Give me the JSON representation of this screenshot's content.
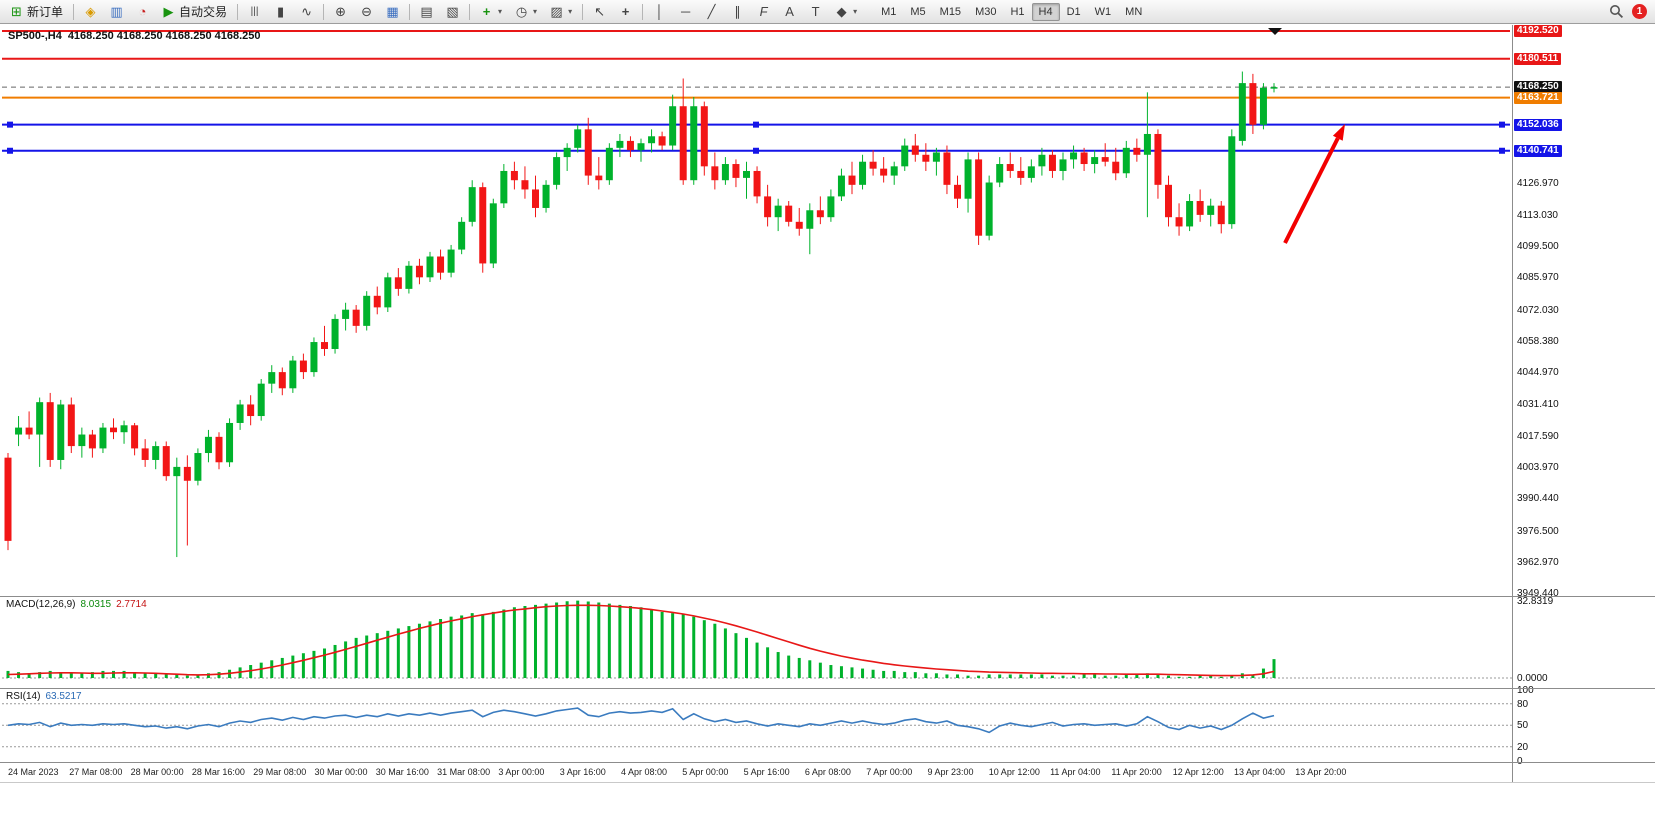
{
  "toolbar": {
    "new_order_label": "新订单",
    "auto_trading_label": "自动交易",
    "timeframes": [
      "M1",
      "M5",
      "M15",
      "M30",
      "H1",
      "H4",
      "D1",
      "W1",
      "MN"
    ],
    "active_timeframe": "H4",
    "notification_badge": "1",
    "icons": {
      "new_order": "⊞",
      "metaeditor": "◈",
      "market_watch": "▥",
      "strategy_tester": "◔",
      "auto_trading": "▶",
      "bar_chart": "|||",
      "candle_chart": "▮",
      "line_chart": "∿",
      "zoom_in": "⊕",
      "zoom_out": "⊖",
      "tile_windows": "▦",
      "arrange_windows": "▤",
      "cascade_windows": "▧",
      "indicators_add": "+",
      "periods": "◷",
      "templates": "▨",
      "cursor": "↖",
      "crosshair": "+",
      "vertical_line": "│",
      "horizontal_line": "─",
      "trend_line": "╱",
      "channel": "∥",
      "fibonacci": "F",
      "text": "A",
      "text_label": "T",
      "shapes": "◆",
      "dropdown": "▾"
    }
  },
  "chart": {
    "title_symbol": "SP500-,H4",
    "title_ohlc": "4168.250 4168.250 4168.250 4168.250",
    "current_price": "4168.250",
    "axis_price_labels": [
      "4126.970",
      "4113.030",
      "4099.500",
      "4085.970",
      "4072.030",
      "4058.380",
      "4044.970",
      "4031.410",
      "4017.590",
      "4003.970",
      "3990.440",
      "3976.500",
      "3962.970",
      "3949.440"
    ],
    "price_tags": [
      {
        "label": "4192.520",
        "price": 4192.52,
        "bg": "#e81717",
        "line": "#e81717",
        "style": "solid",
        "width": 2,
        "selected": false
      },
      {
        "label": "4180.511",
        "price": 4180.511,
        "bg": "#e81717",
        "line": "#e81717",
        "style": "solid",
        "width": 2,
        "selected": false
      },
      {
        "label": "4168.250",
        "price": 4168.25,
        "bg": "#111111",
        "line": "#666666",
        "style": "dashed",
        "width": 1,
        "selected": false
      },
      {
        "label": "4163.721",
        "price": 4163.721,
        "bg": "#f07d00",
        "line": "#f07d00",
        "style": "solid",
        "width": 2,
        "selected": false
      },
      {
        "label": "4152.036",
        "price": 4152.036,
        "bg": "#1414e8",
        "line": "#1414e8",
        "style": "solid",
        "width": 2,
        "selected": true
      },
      {
        "label": "4140.741",
        "price": 4140.741,
        "bg": "#1414e8",
        "line": "#1414e8",
        "style": "solid",
        "width": 2,
        "selected": true
      }
    ]
  },
  "macd": {
    "name": "MACD(12,26,9)",
    "value_main": "8.0315",
    "value_signal": "2.7714",
    "axis": [
      "32.8319",
      "0.0000"
    ]
  },
  "rsi": {
    "name": "RSI(14)",
    "value": "63.5217",
    "axis": [
      "100",
      "80",
      "50",
      "20",
      "0"
    ],
    "levels": [
      80,
      50,
      20
    ]
  },
  "time_axis": [
    "24 Mar 2023",
    "27 Mar 08:00",
    "28 Mar 00:00",
    "28 Mar 16:00",
    "29 Mar 08:00",
    "30 Mar 00:00",
    "30 Mar 16:00",
    "31 Mar 08:00",
    "3 Apr 00:00",
    "3 Apr 16:00",
    "4 Apr 08:00",
    "5 Apr 00:00",
    "5 Apr 16:00",
    "6 Apr 08:00",
    "7 Apr 00:00",
    "9 Apr 23:00",
    "10 Apr 12:00",
    "11 Apr 04:00",
    "11 Apr 20:00",
    "12 Apr 12:00",
    "13 Apr 04:00",
    "13 Apr 20:00"
  ],
  "chart_data": {
    "type": "candlestick",
    "symbol": "SP500-",
    "timeframe": "H4",
    "title": "SP500-,H4 4168.250 4168.250 4168.250 4168.250",
    "price_axis_range": [
      3949.44,
      4192.52
    ],
    "current_price": 4168.25,
    "horizontal_levels": [
      {
        "price": 4192.52,
        "color": "red"
      },
      {
        "price": 4180.511,
        "color": "red"
      },
      {
        "price": 4163.721,
        "color": "orange"
      },
      {
        "price": 4152.036,
        "color": "blue"
      },
      {
        "price": 4140.741,
        "color": "blue"
      }
    ],
    "colors": {
      "up": "#00b22c",
      "down": "#f21616",
      "macd_hist": "#00b22c",
      "macd_signal": "#e81717",
      "rsi": "#3a7bbf",
      "annotation": "#f20000"
    },
    "candles": [
      [
        4008,
        4010,
        3968,
        3972
      ],
      [
        4018,
        4026,
        4013,
        4021
      ],
      [
        4021,
        4028,
        4016,
        4018
      ],
      [
        4018,
        4034,
        4004,
        4032
      ],
      [
        4032,
        4036,
        4004,
        4007
      ],
      [
        4007,
        4033,
        4003,
        4031
      ],
      [
        4031,
        4034,
        4010,
        4013
      ],
      [
        4013,
        4021,
        4008,
        4018
      ],
      [
        4018,
        4020,
        4008,
        4012
      ],
      [
        4012,
        4023,
        4010,
        4021
      ],
      [
        4021,
        4025,
        4016,
        4019
      ],
      [
        4019,
        4024,
        4014,
        4022
      ],
      [
        4022,
        4023,
        4009,
        4012
      ],
      [
        4012,
        4016,
        4004,
        4007
      ],
      [
        4007,
        4015,
        4003,
        4013
      ],
      [
        4013,
        4015,
        3998,
        4000
      ],
      [
        4000,
        4008,
        3965,
        4004
      ],
      [
        4004,
        4009,
        3970,
        3998
      ],
      [
        3998,
        4012,
        3996,
        4010
      ],
      [
        4010,
        4020,
        4006,
        4017
      ],
      [
        4017,
        4019,
        4003,
        4006
      ],
      [
        4006,
        4025,
        4004,
        4023
      ],
      [
        4023,
        4033,
        4020,
        4031
      ],
      [
        4031,
        4035,
        4022,
        4026
      ],
      [
        4026,
        4042,
        4024,
        4040
      ],
      [
        4040,
        4048,
        4036,
        4045
      ],
      [
        4045,
        4047,
        4035,
        4038
      ],
      [
        4038,
        4052,
        4036,
        4050
      ],
      [
        4050,
        4053,
        4042,
        4045
      ],
      [
        4045,
        4060,
        4043,
        4058
      ],
      [
        4058,
        4065,
        4052,
        4055
      ],
      [
        4055,
        4070,
        4053,
        4068
      ],
      [
        4068,
        4075,
        4063,
        4072
      ],
      [
        4072,
        4074,
        4062,
        4065
      ],
      [
        4065,
        4080,
        4063,
        4078
      ],
      [
        4078,
        4082,
        4070,
        4073
      ],
      [
        4073,
        4088,
        4071,
        4086
      ],
      [
        4086,
        4090,
        4078,
        4081
      ],
      [
        4081,
        4093,
        4079,
        4091
      ],
      [
        4091,
        4094,
        4083,
        4086
      ],
      [
        4086,
        4097,
        4084,
        4095
      ],
      [
        4095,
        4098,
        4085,
        4088
      ],
      [
        4088,
        4100,
        4086,
        4098
      ],
      [
        4098,
        4112,
        4096,
        4110
      ],
      [
        4110,
        4128,
        4108,
        4125
      ],
      [
        4125,
        4127,
        4088,
        4092
      ],
      [
        4092,
        4120,
        4090,
        4118
      ],
      [
        4118,
        4135,
        4116,
        4132
      ],
      [
        4132,
        4136,
        4124,
        4128
      ],
      [
        4128,
        4134,
        4120,
        4124
      ],
      [
        4124,
        4130,
        4112,
        4116
      ],
      [
        4116,
        4128,
        4114,
        4126
      ],
      [
        4126,
        4140,
        4124,
        4138
      ],
      [
        4138,
        4144,
        4132,
        4142
      ],
      [
        4142,
        4152,
        4140,
        4150
      ],
      [
        4150,
        4155,
        4126,
        4130
      ],
      [
        4130,
        4138,
        4124,
        4128
      ],
      [
        4128,
        4144,
        4126,
        4142
      ],
      [
        4142,
        4148,
        4138,
        4145
      ],
      [
        4145,
        4147,
        4138,
        4141
      ],
      [
        4141,
        4146,
        4136,
        4144
      ],
      [
        4144,
        4150,
        4140,
        4147
      ],
      [
        4147,
        4149,
        4141,
        4143
      ],
      [
        4143,
        4165,
        4141,
        4160
      ],
      [
        4160,
        4172,
        4126,
        4128
      ],
      [
        4128,
        4164,
        4126,
        4160
      ],
      [
        4160,
        4162,
        4130,
        4134
      ],
      [
        4134,
        4140,
        4124,
        4128
      ],
      [
        4128,
        4138,
        4126,
        4135
      ],
      [
        4135,
        4137,
        4125,
        4129
      ],
      [
        4129,
        4136,
        4120,
        4132
      ],
      [
        4132,
        4134,
        4118,
        4121
      ],
      [
        4121,
        4126,
        4108,
        4112
      ],
      [
        4112,
        4120,
        4106,
        4117
      ],
      [
        4117,
        4119,
        4108,
        4110
      ],
      [
        4110,
        4116,
        4104,
        4107
      ],
      [
        4107,
        4118,
        4096,
        4115
      ],
      [
        4115,
        4121,
        4109,
        4112
      ],
      [
        4112,
        4124,
        4110,
        4121
      ],
      [
        4121,
        4133,
        4119,
        4130
      ],
      [
        4130,
        4136,
        4122,
        4126
      ],
      [
        4126,
        4139,
        4124,
        4136
      ],
      [
        4136,
        4141,
        4130,
        4133
      ],
      [
        4133,
        4138,
        4127,
        4130
      ],
      [
        4130,
        4136,
        4126,
        4134
      ],
      [
        4134,
        4146,
        4132,
        4143
      ],
      [
        4143,
        4148,
        4136,
        4139
      ],
      [
        4139,
        4144,
        4132,
        4136
      ],
      [
        4136,
        4142,
        4130,
        4140
      ],
      [
        4140,
        4143,
        4122,
        4126
      ],
      [
        4126,
        4130,
        4116,
        4120
      ],
      [
        4120,
        4140,
        4114,
        4137
      ],
      [
        4137,
        4140,
        4100,
        4104
      ],
      [
        4104,
        4130,
        4102,
        4127
      ],
      [
        4127,
        4138,
        4125,
        4135
      ],
      [
        4135,
        4140,
        4129,
        4132
      ],
      [
        4132,
        4138,
        4126,
        4129
      ],
      [
        4129,
        4137,
        4127,
        4134
      ],
      [
        4134,
        4142,
        4130,
        4139
      ],
      [
        4139,
        4141,
        4129,
        4132
      ],
      [
        4132,
        4140,
        4128,
        4137
      ],
      [
        4137,
        4143,
        4133,
        4140
      ],
      [
        4140,
        4142,
        4132,
        4135
      ],
      [
        4135,
        4141,
        4131,
        4138
      ],
      [
        4138,
        4144,
        4134,
        4136
      ],
      [
        4136,
        4142,
        4128,
        4131
      ],
      [
        4131,
        4145,
        4129,
        4142
      ],
      [
        4142,
        4146,
        4136,
        4139
      ],
      [
        4139,
        4166,
        4112,
        4148
      ],
      [
        4148,
        4150,
        4120,
        4126
      ],
      [
        4126,
        4130,
        4108,
        4112
      ],
      [
        4112,
        4118,
        4104,
        4108
      ],
      [
        4108,
        4122,
        4106,
        4119
      ],
      [
        4119,
        4124,
        4110,
        4113
      ],
      [
        4113,
        4120,
        4108,
        4117
      ],
      [
        4117,
        4119,
        4105,
        4109
      ],
      [
        4109,
        4150,
        4107,
        4147
      ],
      [
        4145,
        4175,
        4143,
        4170
      ],
      [
        4170,
        4174,
        4148,
        4152
      ],
      [
        4152,
        4170,
        4150,
        4168
      ],
      [
        4168,
        4170,
        4166,
        4168.25
      ]
    ],
    "macd": {
      "histogram": [
        3,
        2.5,
        2,
        2.5,
        3,
        2.5,
        2,
        2,
        2.5,
        3,
        3,
        3,
        2.5,
        2,
        2,
        1.5,
        1.5,
        1,
        1.5,
        2,
        2.5,
        3.5,
        4.5,
        5.5,
        6.5,
        7.5,
        8.5,
        9.5,
        10.5,
        11.5,
        12.5,
        14,
        15.5,
        17,
        18,
        19,
        20,
        21,
        22,
        23,
        24,
        25,
        26,
        26.5,
        27.5,
        27,
        28,
        29,
        30,
        30.5,
        31,
        31.5,
        32,
        32.5,
        32.8,
        32.4,
        32,
        31.5,
        31,
        30.5,
        30,
        29,
        28,
        27.5,
        27,
        26,
        24.5,
        23,
        21,
        19,
        17,
        15,
        13,
        11,
        9.5,
        8.5,
        7.5,
        6.5,
        5.5,
        5,
        4.5,
        4,
        3.5,
        3,
        3,
        2.5,
        2.5,
        2,
        2,
        1.5,
        1.5,
        1,
        1,
        1.5,
        1.5,
        1.5,
        1.5,
        1.5,
        1.5,
        1,
        1,
        1,
        1.5,
        1.5,
        1,
        1,
        1.5,
        1.5,
        2,
        1.5,
        1,
        0.5,
        0.5,
        1,
        1,
        0.5,
        1,
        2,
        1.5,
        4,
        8
      ],
      "signal": [
        1.5,
        1.6,
        1.8,
        2,
        2.1,
        2.2,
        2.2,
        2.1,
        2,
        2,
        2.1,
        2.2,
        2.2,
        2.1,
        2,
        1.8,
        1.6,
        1.4,
        1.3,
        1.4,
        1.6,
        2,
        2.5,
        3.1,
        3.8,
        4.6,
        5.5,
        6.5,
        7.5,
        8.6,
        9.7,
        10.9,
        12.1,
        13.4,
        14.7,
        16,
        17.3,
        18.6,
        19.8,
        21,
        22.1,
        23.2,
        24.2,
        25.1,
        26,
        26.8,
        27.5,
        28.2,
        28.8,
        29.3,
        29.8,
        30.2,
        30.5,
        30.7,
        30.8,
        30.8,
        30.7,
        30.5,
        30.2,
        29.9,
        29.5,
        29,
        28.4,
        27.8,
        27.1,
        26.3,
        25.4,
        24.4,
        23.3,
        22.1,
        20.8,
        19.5,
        18.1,
        16.7,
        15.3,
        13.9,
        12.6,
        11.4,
        10.3,
        9.3,
        8.4,
        7.6,
        6.9,
        6.2,
        5.6,
        5.1,
        4.6,
        4.2,
        3.8,
        3.5,
        3.2,
        2.9,
        2.7,
        2.5,
        2.4,
        2.3,
        2.2,
        2.1,
        2,
        2,
        1.9,
        1.9,
        1.8,
        1.8,
        1.7,
        1.7,
        1.6,
        1.6,
        1.6,
        1.6,
        1.5,
        1.4,
        1.3,
        1.2,
        1.1,
        1,
        1,
        1.1,
        1.3,
        1.8,
        2.8
      ]
    },
    "rsi_values": [
      50,
      52,
      51,
      54,
      48,
      53,
      50,
      51,
      50,
      52,
      51,
      52,
      50,
      48,
      49,
      46,
      48,
      45,
      49,
      51,
      48,
      53,
      56,
      54,
      58,
      60,
      57,
      61,
      58,
      62,
      60,
      63,
      64,
      61,
      64,
      62,
      66,
      63,
      66,
      64,
      67,
      64,
      67,
      69,
      71,
      62,
      68,
      71,
      69,
      66,
      63,
      66,
      70,
      72,
      74,
      64,
      62,
      67,
      69,
      67,
      68,
      70,
      68,
      73,
      58,
      66,
      59,
      55,
      58,
      54,
      56,
      52,
      49,
      52,
      50,
      48,
      52,
      50,
      53,
      56,
      53,
      56,
      53,
      51,
      53,
      57,
      59,
      55,
      53,
      56,
      50,
      48,
      45,
      40,
      49,
      53,
      50,
      48,
      51,
      54,
      49,
      51,
      52,
      50,
      51,
      52,
      49,
      52,
      62,
      55,
      47,
      44,
      50,
      46,
      49,
      44,
      50,
      59,
      67,
      60,
      63.5
    ],
    "annotation_arrow": {
      "from": [
        1283,
        217
      ],
      "to": [
        1343,
        98
      ],
      "color": "#f20000"
    }
  }
}
